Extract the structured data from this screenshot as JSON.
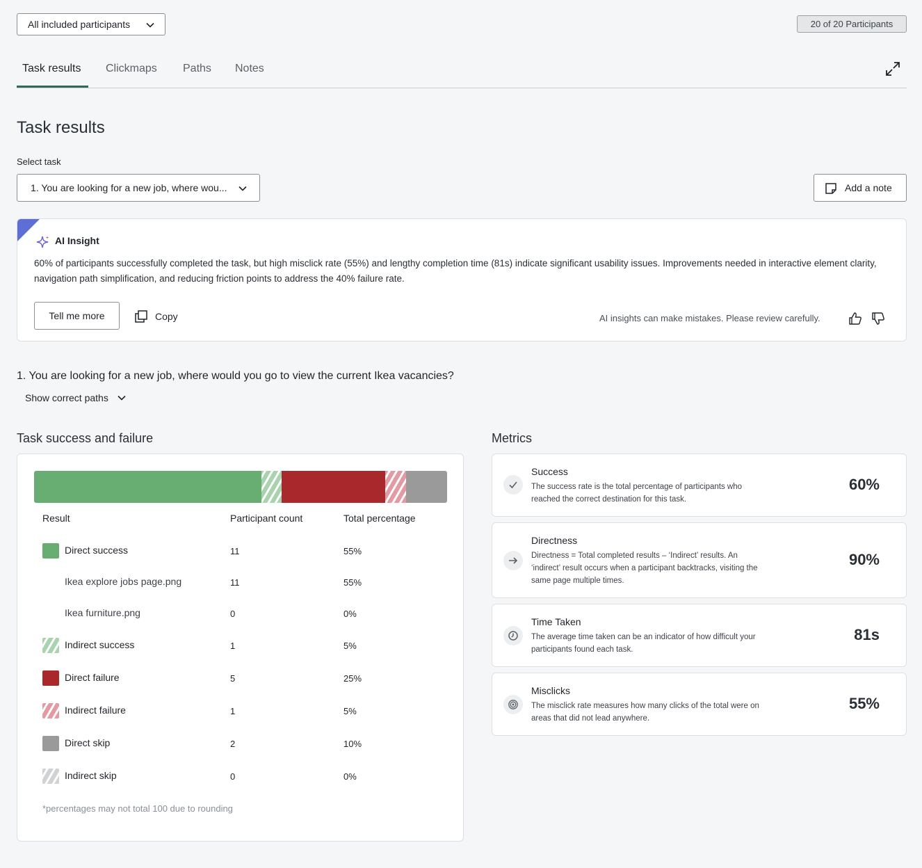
{
  "filter": {
    "label": "All included participants"
  },
  "participants_badge": "20 of 20 Participants",
  "tabs": [
    {
      "label": "Task results"
    },
    {
      "label": "Clickmaps"
    },
    {
      "label": "Paths"
    },
    {
      "label": "Notes"
    }
  ],
  "page_title": "Task results",
  "select_task": {
    "label": "Select task",
    "value": "1. You are looking for a new job, where wou..."
  },
  "add_note_label": "Add a note",
  "ai_insight": {
    "title": "AI Insight",
    "text": "60% of participants successfully completed the task, but high misclick rate (55%) and lengthy completion time (81s) indicate significant usability issues. Improvements needed in interactive element clarity, navigation path simplification, and reducing friction points to address the 40% failure rate.",
    "tell_more": "Tell me more",
    "copy": "Copy",
    "disclaimer": "AI insights can make mistakes. Please review carefully."
  },
  "question": "1. You are looking for a new job, where would you go to view the current Ikea vacancies?",
  "show_paths": "Show correct paths",
  "success_failure": {
    "title": "Task success and failure",
    "headers": {
      "result": "Result",
      "count": "Participant count",
      "pct": "Total percentage"
    },
    "rows": [
      {
        "label": "Direct success",
        "count": "11",
        "pct": "55%",
        "swatch": "direct-success"
      },
      {
        "label": "Ikea explore jobs page.png",
        "count": "11",
        "pct": "55%",
        "swatch": ""
      },
      {
        "label": "Ikea furniture.png",
        "count": "0",
        "pct": "0%",
        "swatch": ""
      },
      {
        "label": "Indirect success",
        "count": "1",
        "pct": "5%",
        "swatch": "indirect-success"
      },
      {
        "label": "Direct failure",
        "count": "5",
        "pct": "25%",
        "swatch": "direct-failure"
      },
      {
        "label": "Indirect failure",
        "count": "1",
        "pct": "5%",
        "swatch": "indirect-failure"
      },
      {
        "label": "Direct skip",
        "count": "2",
        "pct": "10%",
        "swatch": "direct-skip"
      },
      {
        "label": "Indirect skip",
        "count": "0",
        "pct": "0%",
        "swatch": "indirect-skip"
      }
    ],
    "bar_segments": [
      {
        "key": "direct-success",
        "pct": 55
      },
      {
        "key": "indirect-success",
        "pct": 5
      },
      {
        "key": "direct-failure",
        "pct": 25
      },
      {
        "key": "indirect-failure",
        "pct": 5
      },
      {
        "key": "direct-skip",
        "pct": 10
      }
    ],
    "footnote": "*percentages may not total 100 due to rounding",
    "colors": {
      "direct-success": "#68ad72",
      "indirect-success": "#a9d3ad",
      "direct-failure": "#a8282c",
      "indirect-failure": "#e39aa3",
      "direct-skip": "#9a9a9a",
      "indirect-skip": "#d0d2d4"
    }
  },
  "metrics": {
    "title": "Metrics",
    "items": [
      {
        "title": "Success",
        "desc": "The success rate is the total percentage of participants who reached the correct destination for this task.",
        "value": "60%",
        "icon": "check-icon"
      },
      {
        "title": "Directness",
        "desc": "Directness = Total completed results – ‘Indirect’ results. An ‘indirect’ result occurs when a participant backtracks, visiting the same page multiple times.",
        "value": "90%",
        "icon": "arrow-right-icon"
      },
      {
        "title": "Time Taken",
        "desc": "The average time taken can be an indicator of how difficult your participants found each task.",
        "value": "81s",
        "icon": "clock-icon"
      },
      {
        "title": "Misclicks",
        "desc": "The misclick rate measures how many clicks of the total were on areas that did not lead anywhere.",
        "value": "55%",
        "icon": "target-icon"
      }
    ]
  }
}
